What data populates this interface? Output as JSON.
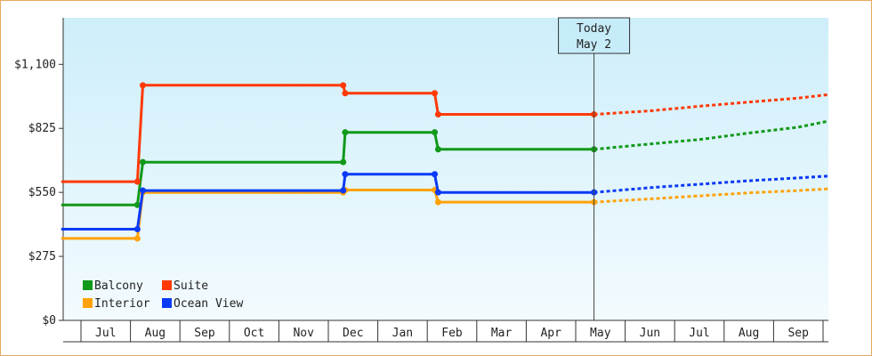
{
  "chart_data": {
    "type": "line",
    "line_style": "step",
    "x_ticks": [
      "Jul",
      "Aug",
      "Sep",
      "Oct",
      "Nov",
      "Dec",
      "Jan",
      "Feb",
      "Mar",
      "Apr",
      "May",
      "Jun",
      "Jul",
      "Aug",
      "Sep"
    ],
    "y_ticks": [
      "$0",
      "$275",
      "$550",
      "$825",
      "$1,100"
    ],
    "ylim": [
      0,
      1300
    ],
    "today_marker": {
      "line1": "Today",
      "line2": "May 2",
      "x": 10.37
    },
    "legend": {
      "position": "bottom-left"
    },
    "colors": {
      "Balcony": "#11991a",
      "Suite": "#ff3a08",
      "Interior": "#ffa208",
      "Ocean View": "#0a3af5"
    },
    "series": [
      {
        "name": "Balcony",
        "points": [
          [
            -0.4,
            496
          ],
          [
            1.14,
            496
          ],
          [
            1.25,
            680
          ],
          [
            5.3,
            680
          ],
          [
            5.34,
            808
          ],
          [
            7.15,
            808
          ],
          [
            7.22,
            735
          ],
          [
            10.37,
            735
          ]
        ],
        "forecast": [
          [
            10.37,
            735
          ],
          [
            11.5,
            758
          ],
          [
            12.5,
            777
          ],
          [
            13.5,
            805
          ],
          [
            14.5,
            830
          ],
          [
            15.3,
            856
          ]
        ]
      },
      {
        "name": "Suite",
        "points": [
          [
            -0.4,
            596
          ],
          [
            1.14,
            596
          ],
          [
            1.25,
            1010
          ],
          [
            5.3,
            1010
          ],
          [
            5.34,
            976
          ],
          [
            7.15,
            976
          ],
          [
            7.22,
            885
          ],
          [
            10.37,
            885
          ]
        ],
        "forecast": [
          [
            10.37,
            885
          ],
          [
            11.5,
            900
          ],
          [
            12.5,
            920
          ],
          [
            13.5,
            938
          ],
          [
            14.5,
            955
          ],
          [
            15.3,
            970
          ]
        ]
      },
      {
        "name": "Interior",
        "points": [
          [
            -0.4,
            352
          ],
          [
            1.14,
            352
          ],
          [
            1.25,
            550
          ],
          [
            5.3,
            550
          ],
          [
            5.34,
            560
          ],
          [
            7.15,
            560
          ],
          [
            7.22,
            508
          ],
          [
            10.37,
            508
          ]
        ],
        "forecast": [
          [
            10.37,
            508
          ],
          [
            11.5,
            522
          ],
          [
            12.5,
            535
          ],
          [
            13.5,
            548
          ],
          [
            14.5,
            558
          ],
          [
            15.3,
            565
          ]
        ]
      },
      {
        "name": "Ocean View",
        "points": [
          [
            -0.4,
            392
          ],
          [
            1.14,
            392
          ],
          [
            1.25,
            558
          ],
          [
            5.3,
            558
          ],
          [
            5.34,
            628
          ],
          [
            7.15,
            628
          ],
          [
            7.22,
            550
          ],
          [
            10.37,
            550
          ]
        ],
        "forecast": [
          [
            10.37,
            550
          ],
          [
            11.5,
            570
          ],
          [
            12.5,
            585
          ],
          [
            13.5,
            600
          ],
          [
            14.5,
            612
          ],
          [
            15.3,
            620
          ]
        ]
      }
    ]
  }
}
